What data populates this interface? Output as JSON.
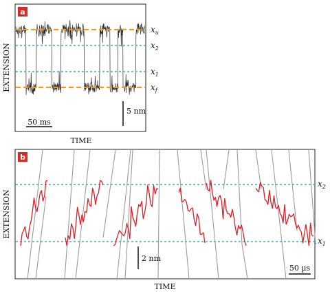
{
  "colors": {
    "badge": "#d92a27",
    "trace_a": "#2b2b2b",
    "trace_b_red": "#e31b23",
    "trace_b_gray": "#9a9a9a",
    "dash_orange": "#f39a1e",
    "dash_cyan": "#39c3d6"
  },
  "panel_a": {
    "badge": "a",
    "ylabel": "EXTENSION",
    "xlabel": "TIME",
    "levels": [
      {
        "symbol": "x",
        "sub": "u"
      },
      {
        "symbol": "x",
        "sub": "2"
      },
      {
        "symbol": "x",
        "sub": "1"
      },
      {
        "symbol": "x",
        "sub": "f"
      }
    ],
    "scale_time": "50 ms",
    "scale_ext": "5 nm"
  },
  "panel_b": {
    "badge": "b",
    "ylabel": "EXTENSION",
    "xlabel": "TIME",
    "levels": [
      {
        "symbol": "x",
        "sub": "2"
      },
      {
        "symbol": "x",
        "sub": "1"
      }
    ],
    "scale_time": "50 µs",
    "scale_ext": "2 nm"
  },
  "chart_data": [
    {
      "type": "line",
      "title": "a",
      "xlabel": "TIME",
      "ylabel": "EXTENSION",
      "legend": "none",
      "grid": false,
      "reference_levels": [
        "x_u",
        "x_2",
        "x_1",
        "x_f"
      ],
      "level_order_top_to_bottom": [
        "x_u",
        "x_2",
        "x_1",
        "x_f"
      ],
      "dwell_states_sequence": [
        "x_u",
        "x_f",
        "x_u",
        "x_f",
        "x_u",
        "x_f",
        "x_u",
        "x_f",
        "x_u",
        "x_f",
        "x_u"
      ],
      "scale_bars": {
        "time": "50 ms",
        "extension": "5 nm"
      }
    },
    {
      "type": "line",
      "title": "b",
      "xlabel": "TIME",
      "ylabel": "EXTENSION",
      "legend": "none",
      "grid": false,
      "reference_levels": [
        "x_2",
        "x_1"
      ],
      "transition_count": 6,
      "series": [
        {
          "color": "red",
          "role": "transition paths between x_1 and x_2"
        },
        {
          "color": "gray",
          "role": "trajectory outside the x_1–x_2 region"
        }
      ],
      "scale_bars": {
        "time": "50 µs",
        "extension": "2 nm"
      }
    }
  ]
}
